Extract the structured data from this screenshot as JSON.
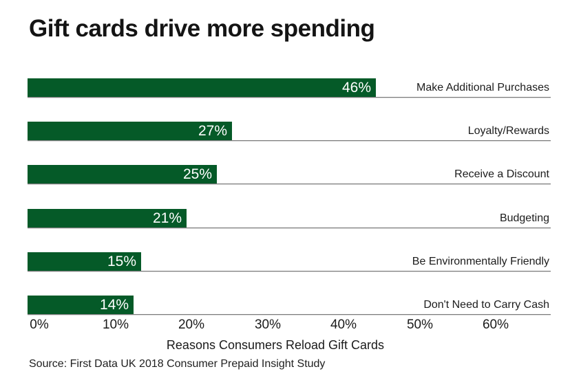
{
  "title": "Gift cards drive more spending",
  "source": "Source: First Data UK 2018 Consumer Prepaid Insight Study",
  "chart_data": {
    "type": "bar",
    "orientation": "horizontal",
    "title": "Gift cards drive more spending",
    "categories": [
      "Make Additional Purchases",
      "Loyalty/Rewards",
      "Receive a Discount",
      "Budgeting",
      "Be Environmentally Friendly",
      "Don't Need to Carry Cash"
    ],
    "values": [
      46,
      27,
      25,
      21,
      15,
      14
    ],
    "value_labels": [
      "46%",
      "27%",
      "25%",
      "21%",
      "15%",
      "14%"
    ],
    "xlabel": "Reasons Consumers Reload Gift Cards",
    "ylabel": "",
    "x_ticks": [
      "0%",
      "10%",
      "20%",
      "30%",
      "40%",
      "50%",
      "60%"
    ],
    "xlim": [
      0,
      60
    ],
    "grid": false,
    "legend": "none",
    "bar_color": "#055a28",
    "value_label_color": "#ffffff",
    "source": "Source: First Data UK 2018 Consumer Prepaid Insight Study"
  }
}
